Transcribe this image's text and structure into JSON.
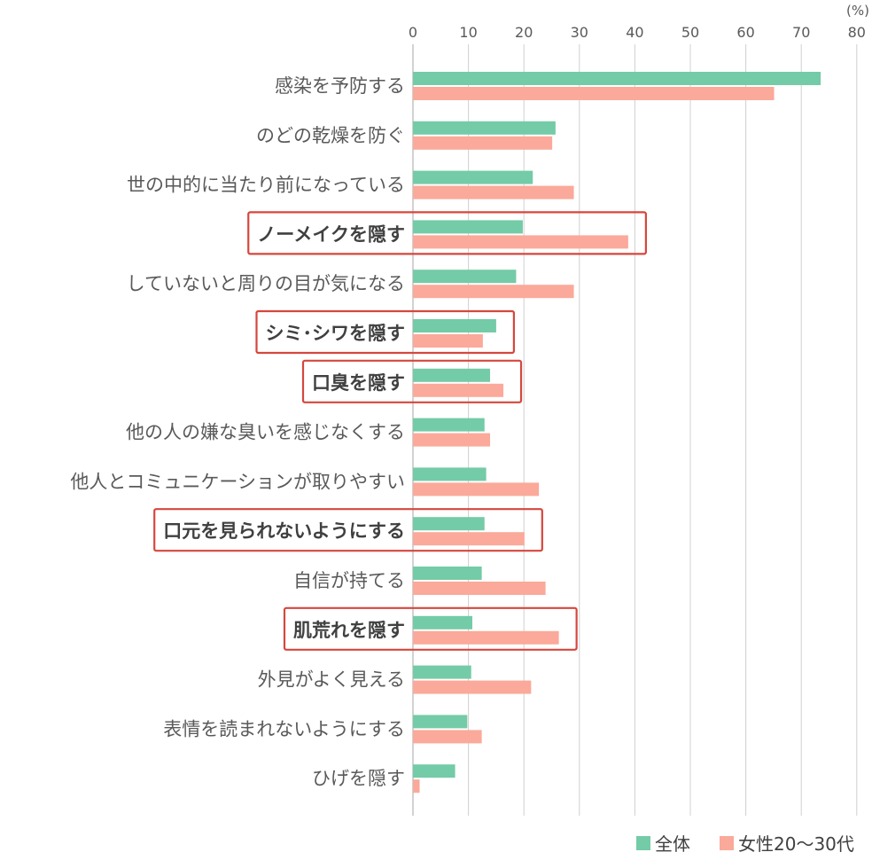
{
  "chart_data": {
    "type": "bar",
    "orientation": "horizontal",
    "unit_label": "(%)",
    "xlim": [
      0,
      80
    ],
    "x_ticks": [
      "0",
      "10",
      "20",
      "30",
      "40",
      "50",
      "60",
      "70",
      "80"
    ],
    "grid": true,
    "legend_position": "bottom-right",
    "categories": [
      {
        "label": "感染を予防する",
        "highlighted": false
      },
      {
        "label": "のどの乾燥を防ぐ",
        "highlighted": false
      },
      {
        "label": "世の中的に当たり前になっている",
        "highlighted": false
      },
      {
        "label": "ノーメイクを隠す",
        "highlighted": true
      },
      {
        "label": "していないと周りの目が気になる",
        "highlighted": false
      },
      {
        "label": "シミ･シワを隠す",
        "highlighted": true
      },
      {
        "label": "口臭を隠す",
        "highlighted": true
      },
      {
        "label": "他の人の嫌な臭いを感じなくする",
        "highlighted": false
      },
      {
        "label": "他人とコミュニケーションが取りやすい",
        "highlighted": false
      },
      {
        "label": "口元を見られないようにする",
        "highlighted": true
      },
      {
        "label": "自信が持てる",
        "highlighted": false
      },
      {
        "label": "肌荒れを隠す",
        "highlighted": true
      },
      {
        "label": "外見がよく見える",
        "highlighted": false
      },
      {
        "label": "表情を読まれないようにする",
        "highlighted": false
      },
      {
        "label": "ひげを隠す",
        "highlighted": false
      }
    ],
    "series": [
      {
        "name": "全体",
        "color": "#74CBA7",
        "values": [
          73.5,
          25.7,
          21.6,
          19.8,
          18.6,
          15.0,
          13.9,
          12.9,
          13.2,
          12.9,
          12.4,
          10.7,
          10.5,
          9.8,
          7.6
        ]
      },
      {
        "name": "女性20〜30代",
        "color": "#FBA99A",
        "values": [
          65.1,
          25.1,
          29.0,
          38.8,
          29.0,
          12.6,
          16.3,
          13.9,
          22.7,
          20.1,
          23.9,
          26.3,
          21.3,
          12.4,
          1.2
        ]
      }
    ],
    "highlight_color": "#D5473D"
  }
}
